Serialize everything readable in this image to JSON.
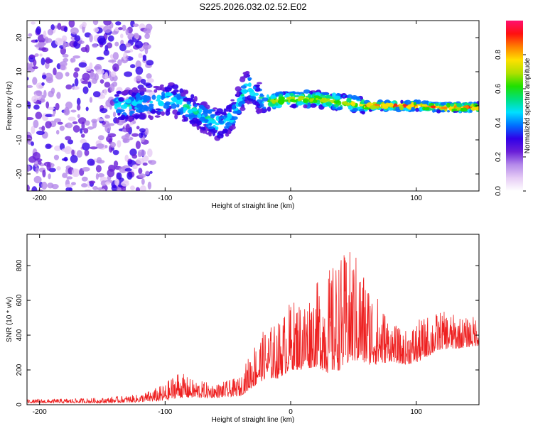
{
  "title": "S225.2026.032.02.52.E02",
  "chart_data": [
    {
      "type": "heatmap",
      "xlabel": "Height of straight line (km)",
      "ylabel": "Frequency (Hz)",
      "xlim": [
        -210,
        150
      ],
      "ylim": [
        -25,
        25
      ],
      "xticks": [
        -200,
        -100,
        0,
        100
      ],
      "yticks": [
        -20,
        -10,
        0,
        10,
        20
      ],
      "grid": false,
      "colorbar": {
        "label": "Normalized spectral amplitude",
        "range": [
          0,
          1
        ],
        "ticks": [
          0.0,
          0.2,
          0.4,
          0.6,
          0.8
        ],
        "tick_labels": [
          "0.0",
          "0.2",
          "0.4",
          "0.6",
          "0.8"
        ],
        "colors": [
          "#ffffff",
          "#e6ccf5",
          "#b58aea",
          "#6a1fd8",
          "#3000e8",
          "#0070ff",
          "#00e0ff",
          "#00e080",
          "#20e000",
          "#b0e000",
          "#ffe000",
          "#ff8000",
          "#ff1010",
          "#ff1070"
        ]
      },
      "ridge": [
        {
          "x": -130,
          "f": 0
        },
        {
          "x": -110,
          "f": 1
        },
        {
          "x": -95,
          "f": 2
        },
        {
          "x": -85,
          "f": 0
        },
        {
          "x": -75,
          "f": -2
        },
        {
          "x": -65,
          "f": -4
        },
        {
          "x": -55,
          "f": -6
        },
        {
          "x": -45,
          "f": -2
        },
        {
          "x": -35,
          "f": 6
        },
        {
          "x": -30,
          "f": 4
        },
        {
          "x": -20,
          "f": 1
        },
        {
          "x": 0,
          "f": 2
        },
        {
          "x": 20,
          "f": 2
        },
        {
          "x": 40,
          "f": 1
        },
        {
          "x": 60,
          "f": 0
        },
        {
          "x": 80,
          "f": 0
        },
        {
          "x": 100,
          "f": 0
        },
        {
          "x": 120,
          "f": -0.5
        },
        {
          "x": 150,
          "f": -0.5
        }
      ]
    },
    {
      "type": "line",
      "xlabel": "Height of straight line (km)",
      "ylabel": "SNR (10 * v/v)",
      "xlim": [
        -210,
        150
      ],
      "ylim": [
        0,
        980
      ],
      "xticks": [
        -200,
        -100,
        0,
        100
      ],
      "yticks": [
        0,
        200,
        400,
        600,
        800
      ],
      "grid": false,
      "color": "#ee2020",
      "envelope_x": [
        -210,
        -150,
        -120,
        -100,
        -90,
        -80,
        -60,
        -40,
        -30,
        -20,
        -10,
        0,
        10,
        20,
        30,
        40,
        50,
        60,
        70,
        80,
        90,
        100,
        110,
        120,
        130,
        140,
        150
      ],
      "envelope_y": [
        30,
        40,
        60,
        120,
        200,
        150,
        120,
        160,
        350,
        440,
        480,
        600,
        620,
        700,
        780,
        860,
        900,
        760,
        620,
        480,
        420,
        480,
        520,
        540,
        520,
        500,
        520
      ],
      "baseline_y": [
        10,
        10,
        15,
        20,
        40,
        40,
        40,
        50,
        100,
        150,
        150,
        200,
        200,
        220,
        180,
        200,
        250,
        230,
        230,
        250,
        230,
        240,
        280,
        320,
        320,
        330,
        340
      ]
    }
  ]
}
